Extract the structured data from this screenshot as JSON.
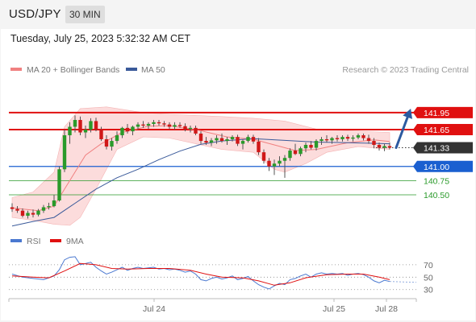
{
  "header": {
    "pair": "USD/JPY",
    "timeframe": "30 MIN",
    "timestamp": "Tuesday, July 25, 2023 5:32:32 AM CET"
  },
  "legend": {
    "ma20": "MA 20 + Bollinger Bands",
    "ma50": "MA 50",
    "ma20_color": "#f08080",
    "ma50_color": "#3a5a9a"
  },
  "source": "Research © 2023 Trading Central",
  "chart_data": [
    {
      "type": "candlestick",
      "title": "USD/JPY",
      "ylim": [
        139.96,
        142.09
      ],
      "x_ticks": [
        "Jul 24",
        "Jul 25",
        "Jul 28"
      ],
      "levels": [
        {
          "label": "141.95",
          "value": 141.95,
          "kind": "resistance",
          "color": "#e01010"
        },
        {
          "label": "141.65",
          "value": 141.65,
          "kind": "resistance",
          "color": "#e01010"
        },
        {
          "label": "141.33",
          "value": 141.33,
          "kind": "last",
          "color": "#333333"
        },
        {
          "label": "141.00",
          "value": 141.0,
          "kind": "pivot",
          "color": "#1a5fd0"
        },
        {
          "label": "140.75",
          "value": 140.75,
          "kind": "support",
          "color": "#2a9a2a"
        },
        {
          "label": "140.50",
          "value": 140.5,
          "kind": "support",
          "color": "#2a9a2a"
        }
      ],
      "candles": [
        [
          140.28,
          140.35,
          140.2,
          140.25
        ],
        [
          140.25,
          140.3,
          140.18,
          140.22
        ],
        [
          140.22,
          140.26,
          140.1,
          140.13
        ],
        [
          140.13,
          140.22,
          140.08,
          140.18
        ],
        [
          140.18,
          140.24,
          140.1,
          140.15
        ],
        [
          140.15,
          140.25,
          140.12,
          140.22
        ],
        [
          140.22,
          140.32,
          140.18,
          140.28
        ],
        [
          140.28,
          140.36,
          140.24,
          140.3
        ],
        [
          140.3,
          140.5,
          140.28,
          140.4
        ],
        [
          140.4,
          141.0,
          140.38,
          140.95
        ],
        [
          140.95,
          141.65,
          140.9,
          141.55
        ],
        [
          141.55,
          141.78,
          141.4,
          141.7
        ],
        [
          141.7,
          141.9,
          141.6,
          141.82
        ],
        [
          141.82,
          141.88,
          141.55,
          141.6
        ],
        [
          141.6,
          141.72,
          141.5,
          141.65
        ],
        [
          141.65,
          141.85,
          141.6,
          141.8
        ],
        [
          141.8,
          141.86,
          141.62,
          141.66
        ],
        [
          141.66,
          141.7,
          141.45,
          141.48
        ],
        [
          141.48,
          141.55,
          141.3,
          141.35
        ],
        [
          141.35,
          141.5,
          141.28,
          141.45
        ],
        [
          141.45,
          141.62,
          141.4,
          141.55
        ],
        [
          141.55,
          141.7,
          141.5,
          141.68
        ],
        [
          141.68,
          141.75,
          141.58,
          141.62
        ],
        [
          141.62,
          141.72,
          141.55,
          141.7
        ],
        [
          141.7,
          141.78,
          141.65,
          141.74
        ],
        [
          141.74,
          141.8,
          141.68,
          141.72
        ],
        [
          141.72,
          141.78,
          141.66,
          141.75
        ],
        [
          141.75,
          141.82,
          141.7,
          141.78
        ],
        [
          141.78,
          141.82,
          141.72,
          141.76
        ],
        [
          141.76,
          141.8,
          141.7,
          141.74
        ],
        [
          141.74,
          141.78,
          141.66,
          141.7
        ],
        [
          141.7,
          141.78,
          141.65,
          141.73
        ],
        [
          141.73,
          141.78,
          141.68,
          141.71
        ],
        [
          141.71,
          141.76,
          141.62,
          141.66
        ],
        [
          141.66,
          141.72,
          141.6,
          141.68
        ],
        [
          141.68,
          141.72,
          141.55,
          141.58
        ],
        [
          141.58,
          141.62,
          141.4,
          141.45
        ],
        [
          141.45,
          141.52,
          141.38,
          141.42
        ],
        [
          141.42,
          141.5,
          141.36,
          141.46
        ],
        [
          141.46,
          141.55,
          141.4,
          141.5
        ],
        [
          141.5,
          141.58,
          141.42,
          141.45
        ],
        [
          141.45,
          141.52,
          141.38,
          141.48
        ],
        [
          141.48,
          141.55,
          141.44,
          141.52
        ],
        [
          141.52,
          141.56,
          141.36,
          141.4
        ],
        [
          141.4,
          141.48,
          141.3,
          141.45
        ],
        [
          141.45,
          141.56,
          141.42,
          141.52
        ],
        [
          141.52,
          141.56,
          141.4,
          141.44
        ],
        [
          141.44,
          141.5,
          141.2,
          141.25
        ],
        [
          141.25,
          141.3,
          141.05,
          141.1
        ],
        [
          141.1,
          141.15,
          140.92,
          141.0
        ],
        [
          141.0,
          141.12,
          140.85,
          141.05
        ],
        [
          141.05,
          141.18,
          141.0,
          141.1
        ],
        [
          141.1,
          141.2,
          140.8,
          141.15
        ],
        [
          141.15,
          141.32,
          141.1,
          141.28
        ],
        [
          141.28,
          141.4,
          141.2,
          141.22
        ],
        [
          141.22,
          141.35,
          141.18,
          141.32
        ],
        [
          141.32,
          141.42,
          141.25,
          141.38
        ],
        [
          141.38,
          141.45,
          141.3,
          141.33
        ],
        [
          141.33,
          141.48,
          141.28,
          141.45
        ],
        [
          141.45,
          141.52,
          141.38,
          141.48
        ],
        [
          141.48,
          141.55,
          141.42,
          141.46
        ],
        [
          141.46,
          141.52,
          141.4,
          141.5
        ],
        [
          141.5,
          141.55,
          141.44,
          141.48
        ],
        [
          141.48,
          141.55,
          141.44,
          141.52
        ],
        [
          141.52,
          141.56,
          141.45,
          141.49
        ],
        [
          141.49,
          141.55,
          141.44,
          141.51
        ],
        [
          141.51,
          141.58,
          141.48,
          141.55
        ],
        [
          141.55,
          141.58,
          141.46,
          141.5
        ],
        [
          141.5,
          141.56,
          141.4,
          141.45
        ],
        [
          141.45,
          141.5,
          141.32,
          141.38
        ],
        [
          141.38,
          141.42,
          141.28,
          141.33
        ],
        [
          141.33,
          141.4,
          141.27,
          141.36
        ],
        [
          141.36,
          141.42,
          141.3,
          141.33
        ]
      ],
      "bollinger_upper": [
        [
          0,
          140.45
        ],
        [
          4,
          140.55
        ],
        [
          8,
          140.9
        ],
        [
          10,
          141.7
        ],
        [
          13,
          142.02
        ],
        [
          18,
          142.05
        ],
        [
          25,
          141.95
        ],
        [
          30,
          141.92
        ],
        [
          35,
          141.9
        ],
        [
          40,
          141.88
        ],
        [
          46,
          141.85
        ],
        [
          52,
          141.8
        ],
        [
          58,
          141.66
        ],
        [
          64,
          141.63
        ],
        [
          72,
          141.6
        ]
      ],
      "bollinger_lower": [
        [
          0,
          140.1
        ],
        [
          4,
          140.05
        ],
        [
          8,
          139.98
        ],
        [
          11,
          139.96
        ],
        [
          13,
          140.1
        ],
        [
          16,
          140.6
        ],
        [
          20,
          141.3
        ],
        [
          25,
          141.52
        ],
        [
          30,
          141.5
        ],
        [
          35,
          141.4
        ],
        [
          40,
          141.3
        ],
        [
          46,
          141.25
        ],
        [
          50,
          140.95
        ],
        [
          52,
          140.9
        ],
        [
          56,
          141.05
        ],
        [
          60,
          141.25
        ],
        [
          66,
          141.35
        ],
        [
          72,
          141.3
        ]
      ],
      "ma20": [
        [
          0,
          140.27
        ],
        [
          5,
          140.22
        ],
        [
          8,
          140.3
        ],
        [
          10,
          140.6
        ],
        [
          12,
          140.9
        ],
        [
          14,
          141.2
        ],
        [
          17,
          141.4
        ],
        [
          21,
          141.6
        ],
        [
          26,
          141.71
        ],
        [
          30,
          141.72
        ],
        [
          36,
          141.63
        ],
        [
          41,
          141.52
        ],
        [
          46,
          141.48
        ],
        [
          50,
          141.38
        ],
        [
          54,
          141.28
        ],
        [
          58,
          141.3
        ],
        [
          64,
          141.42
        ],
        [
          69,
          141.47
        ],
        [
          72,
          141.44
        ]
      ],
      "ma50": [
        [
          0,
          139.95
        ],
        [
          4,
          140.03
        ],
        [
          8,
          140.1
        ],
        [
          12,
          140.35
        ],
        [
          16,
          140.6
        ],
        [
          20,
          140.8
        ],
        [
          24,
          140.95
        ],
        [
          28,
          141.12
        ],
        [
          32,
          141.27
        ],
        [
          36,
          141.39
        ],
        [
          40,
          141.45
        ],
        [
          46,
          141.49
        ],
        [
          52,
          141.46
        ],
        [
          58,
          141.43
        ],
        [
          64,
          141.42
        ],
        [
          68,
          141.41
        ],
        [
          72,
          141.4
        ]
      ]
    },
    {
      "type": "line",
      "title": "RSI",
      "y_ticks": [
        70,
        50,
        30
      ],
      "ylim": [
        18,
        88
      ],
      "x_ticks": [
        "Jul 24",
        "Jul 25",
        "Jul 28"
      ],
      "series": [
        {
          "name": "RSI",
          "color": "#4a78d0",
          "values": [
            [
              0,
              55
            ],
            [
              2,
              50
            ],
            [
              4,
              48
            ],
            [
              6,
              46
            ],
            [
              8,
              52
            ],
            [
              9,
              62
            ],
            [
              10,
              78
            ],
            [
              11,
              82
            ],
            [
              12,
              83
            ],
            [
              13,
              70
            ],
            [
              14,
              72
            ],
            [
              15,
              74
            ],
            [
              16,
              66
            ],
            [
              17,
              60
            ],
            [
              18,
              55
            ],
            [
              19,
              58
            ],
            [
              20,
              62
            ],
            [
              21,
              66
            ],
            [
              22,
              61
            ],
            [
              23,
              64
            ],
            [
              24,
              66
            ],
            [
              25,
              64
            ],
            [
              26,
              65
            ],
            [
              27,
              66
            ],
            [
              28,
              63
            ],
            [
              29,
              64
            ],
            [
              30,
              62
            ],
            [
              31,
              63
            ],
            [
              32,
              61
            ],
            [
              33,
              58
            ],
            [
              34,
              60
            ],
            [
              35,
              55
            ],
            [
              36,
              46
            ],
            [
              37,
              44
            ],
            [
              38,
              48
            ],
            [
              39,
              50
            ],
            [
              40,
              47
            ],
            [
              41,
              49
            ],
            [
              42,
              52
            ],
            [
              43,
              46
            ],
            [
              44,
              48
            ],
            [
              45,
              51
            ],
            [
              46,
              44
            ],
            [
              47,
              38
            ],
            [
              48,
              34
            ],
            [
              49,
              31
            ],
            [
              50,
              36
            ],
            [
              51,
              40
            ],
            [
              52,
              38
            ],
            [
              53,
              46
            ],
            [
              54,
              48
            ],
            [
              55,
              52
            ],
            [
              56,
              55
            ],
            [
              57,
              50
            ],
            [
              58,
              55
            ],
            [
              59,
              57
            ],
            [
              60,
              55
            ],
            [
              61,
              56
            ],
            [
              62,
              55
            ],
            [
              63,
              56
            ],
            [
              64,
              53
            ],
            [
              65,
              55
            ],
            [
              66,
              56
            ],
            [
              67,
              54
            ],
            [
              68,
              50
            ],
            [
              69,
              44
            ],
            [
              70,
              41
            ],
            [
              71,
              45
            ],
            [
              72,
              43
            ]
          ]
        },
        {
          "name": "9MA",
          "color": "#e01010",
          "values": [
            [
              0,
              52
            ],
            [
              4,
              50
            ],
            [
              7,
              49
            ],
            [
              10,
              60
            ],
            [
              13,
              72
            ],
            [
              16,
              70
            ],
            [
              19,
              64
            ],
            [
              22,
              63
            ],
            [
              26,
              64
            ],
            [
              30,
              64
            ],
            [
              34,
              61
            ],
            [
              37,
              55
            ],
            [
              40,
              50
            ],
            [
              44,
              49
            ],
            [
              47,
              44
            ],
            [
              50,
              37
            ],
            [
              53,
              41
            ],
            [
              56,
              49
            ],
            [
              60,
              54
            ],
            [
              64,
              55
            ],
            [
              67,
              55
            ],
            [
              70,
              50
            ],
            [
              72,
              46
            ]
          ]
        }
      ]
    }
  ]
}
